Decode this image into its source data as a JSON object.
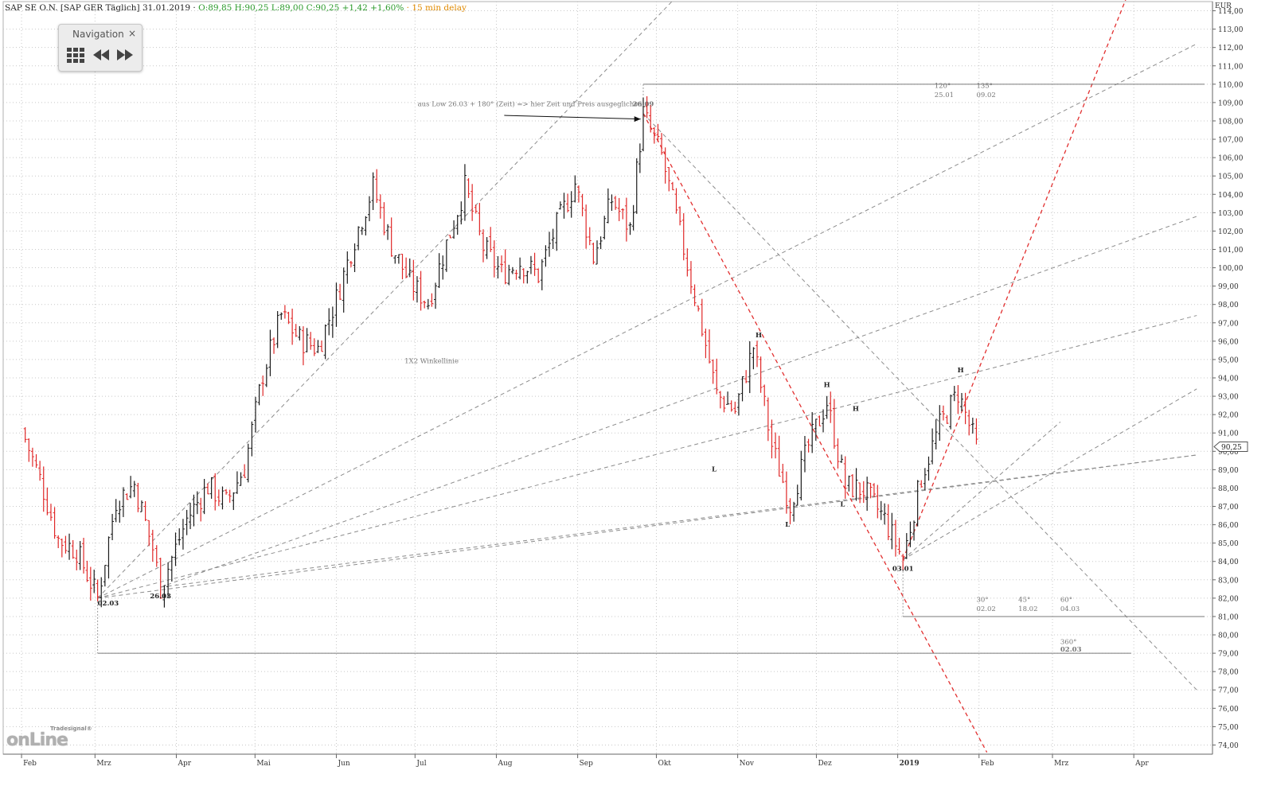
{
  "header": {
    "symbol": "SAP SE O.N. [SAP GER Täglich] 31.01.2019 ·",
    "ohl": "O:89,85 H:90,25 L:89,00",
    "close_change": "C:90,25 +1,42 +1,60%",
    "delay": "· 15 min delay"
  },
  "navigation": {
    "title": "Navigation",
    "close": "×"
  },
  "logo": {
    "tagline": "Tradesignal®",
    "word": "onLine"
  },
  "chart_data": {
    "type": "ohlc",
    "currency": "EUR",
    "ylim": [
      73.5,
      114.5
    ],
    "last_value": "90,25",
    "x_labels": [
      "Feb",
      "Mrz",
      "Apr",
      "Mai",
      "Jun",
      "Jul",
      "Aug",
      "Sep",
      "Okt",
      "Nov",
      "Dez",
      "2019",
      "Feb",
      "Mrz",
      "Apr"
    ],
    "y_ticks": [
      "74,00",
      "75,00",
      "76,00",
      "77,00",
      "78,00",
      "79,00",
      "80,00",
      "81,00",
      "82,00",
      "83,00",
      "84,00",
      "85,00",
      "86,00",
      "87,00",
      "88,00",
      "89,00",
      "90,00",
      "91,00",
      "92,00",
      "93,00",
      "94,00",
      "95,00",
      "96,00",
      "97,00",
      "98,00",
      "99,00",
      "100,00",
      "101,00",
      "102,00",
      "103,00",
      "104,00",
      "105,00",
      "106,00",
      "107,00",
      "108,00",
      "109,00",
      "110,00",
      "111,00",
      "112,00",
      "113,00",
      "114,00"
    ],
    "series_path": [
      [
        "2018-02-01",
        91.2
      ],
      [
        "2018-02-08",
        88.5
      ],
      [
        "2018-02-15",
        85.2
      ],
      [
        "2018-02-22",
        84.6
      ],
      [
        "2018-03-02",
        82.0
      ],
      [
        "2018-03-09",
        87.3
      ],
      [
        "2018-03-16",
        88.2
      ],
      [
        "2018-03-23",
        84.7
      ],
      [
        "2018-03-26",
        82.6
      ],
      [
        "2018-04-05",
        86.3
      ],
      [
        "2018-04-13",
        88.1
      ],
      [
        "2018-04-20",
        87.2
      ],
      [
        "2018-04-27",
        89.1
      ],
      [
        "2018-05-04",
        94.2
      ],
      [
        "2018-05-11",
        97.4
      ],
      [
        "2018-05-18",
        96.1
      ],
      [
        "2018-05-25",
        95.6
      ],
      [
        "2018-06-01",
        98.3
      ],
      [
        "2018-06-08",
        101.6
      ],
      [
        "2018-06-15",
        104.4
      ],
      [
        "2018-06-22",
        101.2
      ],
      [
        "2018-06-29",
        99.2
      ],
      [
        "2018-07-06",
        98.1
      ],
      [
        "2018-07-13",
        101.3
      ],
      [
        "2018-07-20",
        104.4
      ],
      [
        "2018-07-27",
        101.1
      ],
      [
        "2018-08-03",
        99.7
      ],
      [
        "2018-08-10",
        100.3
      ],
      [
        "2018-08-17",
        99.6
      ],
      [
        "2018-08-24",
        102.3
      ],
      [
        "2018-08-31",
        104.6
      ],
      [
        "2018-09-07",
        100.6
      ],
      [
        "2018-09-14",
        103.7
      ],
      [
        "2018-09-21",
        102.1
      ],
      [
        "2018-09-26",
        108.4
      ],
      [
        "2018-10-03",
        106.1
      ],
      [
        "2018-10-10",
        101.9
      ],
      [
        "2018-10-17",
        97.6
      ],
      [
        "2018-10-24",
        93.1
      ],
      [
        "2018-10-31",
        92.2
      ],
      [
        "2018-11-07",
        95.7
      ],
      [
        "2018-11-14",
        90.3
      ],
      [
        "2018-11-21",
        87.1
      ],
      [
        "2018-11-28",
        90.3
      ],
      [
        "2018-12-05",
        92.7
      ],
      [
        "2018-12-12",
        88.1
      ],
      [
        "2018-12-19",
        87.9
      ],
      [
        "2018-12-27",
        86.3
      ],
      [
        "2019-01-03",
        84.1
      ],
      [
        "2019-01-10",
        88.6
      ],
      [
        "2019-01-17",
        91.4
      ],
      [
        "2019-01-24",
        93.2
      ],
      [
        "2019-01-31",
        90.25
      ]
    ],
    "annotations": [
      {
        "text": "aus Low 26.03 + 180° (Zeit) => hier Zeit und Preis ausgeglichen",
        "date": "2018-07-02",
        "y": 108.8
      },
      {
        "text": "26.09",
        "date": "2018-09-26",
        "y": 108.8
      },
      {
        "text": "1X2 Winkellinie",
        "date": "2018-06-27",
        "y": 94.8
      },
      {
        "text": "02.03",
        "date": "2018-03-02",
        "y": 81.6
      },
      {
        "text": "26.03",
        "date": "2018-03-26",
        "y": 82.0
      },
      {
        "text": "03.01",
        "date": "2019-01-03",
        "y": 83.5
      },
      {
        "text": "H",
        "date": "2018-11-09",
        "y": 96.2
      },
      {
        "text": "L",
        "date": "2018-10-23",
        "y": 88.9
      },
      {
        "text": "L",
        "date": "2018-11-20",
        "y": 85.9
      },
      {
        "text": "H",
        "date": "2018-12-05",
        "y": 93.5
      },
      {
        "text": "L",
        "date": "2018-12-11",
        "y": 87.0
      },
      {
        "text": "H",
        "date": "2018-12-16",
        "y": 92.2
      },
      {
        "text": "H",
        "date": "2019-01-25",
        "y": 94.3
      },
      {
        "text": "120°",
        "date": "2019-01-15",
        "y": 109.8
      },
      {
        "text": "25.01",
        "date": "2019-01-15",
        "y": 109.3
      },
      {
        "text": "135°",
        "date": "2019-01-31",
        "y": 109.8
      },
      {
        "text": "09.02",
        "date": "2019-01-31",
        "y": 109.3
      },
      {
        "text": "30°",
        "date": "2019-01-31",
        "y": 81.8
      },
      {
        "text": "02.02",
        "date": "2019-01-31",
        "y": 81.3
      },
      {
        "text": "45°",
        "date": "2019-02-16",
        "y": 81.8
      },
      {
        "text": "18.02",
        "date": "2019-02-16",
        "y": 81.3
      },
      {
        "text": "60°",
        "date": "2019-03-04",
        "y": 81.8
      },
      {
        "text": "04.03",
        "date": "2019-03-04",
        "y": 81.3
      },
      {
        "text": "360°",
        "date": "2019-03-04",
        "y": 79.5
      },
      {
        "text": "02.03",
        "date": "2019-03-04",
        "y": 79.1
      }
    ],
    "lines": [
      {
        "kind": "gray-dash",
        "from": [
          "2018-03-02",
          82.0
        ],
        "to": [
          "2018-10-17",
          116.0
        ]
      },
      {
        "kind": "gray-dash",
        "from": [
          "2018-03-02",
          82.0
        ],
        "to": [
          "2019-04-25",
          112.2
        ]
      },
      {
        "kind": "gray-dash",
        "from": [
          "2018-03-02",
          82.0
        ],
        "to": [
          "2019-04-25",
          97.4
        ]
      },
      {
        "kind": "gray-dash",
        "from": [
          "2018-03-02",
          82.0
        ],
        "to": [
          "2019-04-25",
          89.8
        ]
      },
      {
        "kind": "gray-dash",
        "from": [
          "2018-03-26",
          82.6
        ],
        "to": [
          "2019-04-25",
          102.8
        ]
      },
      {
        "kind": "gray-dash",
        "from": [
          "2018-03-26",
          82.6
        ],
        "to": [
          "2019-04-25",
          89.8
        ]
      },
      {
        "kind": "gray-dash",
        "from": [
          "2018-09-26",
          108.4
        ],
        "to": [
          "2019-04-25",
          77.0
        ]
      },
      {
        "kind": "gray-dash",
        "from": [
          "2019-01-03",
          84.1
        ],
        "to": [
          "2019-04-25",
          93.4
        ]
      },
      {
        "kind": "gray-dash",
        "from": [
          "2019-01-03",
          84.1
        ],
        "to": [
          "2019-03-04",
          91.6
        ]
      },
      {
        "kind": "red-dash",
        "from": [
          "2018-09-26",
          108.4
        ],
        "to": [
          "2019-02-04",
          73.6
        ]
      },
      {
        "kind": "red-dash",
        "from": [
          "2019-01-03",
          84.1
        ],
        "to": [
          "2019-03-30",
          115.0
        ]
      },
      {
        "kind": "solid",
        "from": [
          "2018-09-26",
          110.0
        ],
        "to": [
          "2019-04-28",
          110.0
        ]
      },
      {
        "kind": "solid",
        "from": [
          "2019-01-03",
          81.0
        ],
        "to": [
          "2019-04-28",
          81.0
        ]
      },
      {
        "kind": "solid",
        "from": [
          "2018-03-02",
          79.0
        ],
        "to": [
          "2019-03-31",
          79.0
        ]
      },
      {
        "kind": "vdot",
        "from": [
          "2018-09-26",
          110.0
        ],
        "to": [
          "2018-09-26",
          108.6
        ]
      },
      {
        "kind": "vdot",
        "from": [
          "2019-01-03",
          84.0
        ],
        "to": [
          "2019-01-03",
          81.0
        ]
      },
      {
        "kind": "vdot",
        "from": [
          "2018-03-02",
          82.0
        ],
        "to": [
          "2018-03-02",
          79.0
        ]
      },
      {
        "kind": "arrow",
        "from": [
          "2018-08-04",
          108.3
        ],
        "to": [
          "2018-09-25",
          108.1
        ]
      }
    ]
  }
}
